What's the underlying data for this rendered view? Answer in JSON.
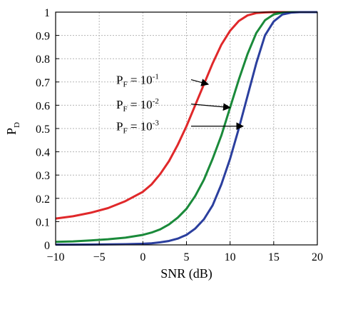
{
  "chart_data": {
    "type": "line",
    "xlabel": "SNR (dB)",
    "ylabel": "P",
    "ylabel_sub": "D",
    "xlim": [
      -10,
      20
    ],
    "ylim": [
      0,
      1
    ],
    "xticks": [
      -10,
      -5,
      0,
      5,
      10,
      15,
      20
    ],
    "xtick_labels": [
      "−10",
      "−5",
      "0",
      "5",
      "10",
      "15",
      "20"
    ],
    "yticks": [
      0,
      0.1,
      0.2,
      0.3,
      0.4,
      0.5,
      0.6,
      0.7,
      0.8,
      0.9,
      1
    ],
    "ytick_labels": [
      "0",
      "0.1",
      "0.2",
      "0.3",
      "0.4",
      "0.5",
      "0.6",
      "0.7",
      "0.8",
      "0.9",
      "1"
    ],
    "grid": true,
    "series": [
      {
        "color": "#e0282a",
        "x": [
          -10,
          -8,
          -6,
          -4,
          -2,
          0,
          1,
          2,
          3,
          4,
          5,
          6,
          7,
          8,
          9,
          10,
          11,
          12,
          13,
          14,
          15,
          16,
          17,
          18,
          20
        ],
        "y": [
          0.113,
          0.123,
          0.138,
          0.158,
          0.188,
          0.228,
          0.26,
          0.305,
          0.36,
          0.43,
          0.51,
          0.6,
          0.69,
          0.78,
          0.86,
          0.92,
          0.962,
          0.986,
          0.996,
          0.999,
          1.0,
          1.0,
          1.0,
          1.0,
          1.0
        ]
      },
      {
        "color": "#1a8a3a",
        "x": [
          -10,
          -8,
          -6,
          -4,
          -2,
          0,
          1,
          2,
          3,
          4,
          5,
          6,
          7,
          8,
          9,
          10,
          11,
          12,
          13,
          14,
          15,
          16,
          17,
          18,
          20
        ],
        "y": [
          0.013,
          0.015,
          0.019,
          0.024,
          0.031,
          0.043,
          0.053,
          0.067,
          0.088,
          0.117,
          0.155,
          0.21,
          0.28,
          0.37,
          0.47,
          0.59,
          0.71,
          0.82,
          0.91,
          0.965,
          0.99,
          0.998,
          1.0,
          1.0,
          1.0
        ]
      },
      {
        "color": "#2b3f9e",
        "x": [
          -10,
          -8,
          -6,
          -4,
          -2,
          0,
          1,
          2,
          3,
          4,
          5,
          6,
          7,
          8,
          9,
          10,
          11,
          12,
          13,
          14,
          15,
          16,
          17,
          18,
          20
        ],
        "y": [
          0.001,
          0.0012,
          0.0016,
          0.0022,
          0.003,
          0.005,
          0.007,
          0.011,
          0.017,
          0.027,
          0.043,
          0.07,
          0.11,
          0.17,
          0.26,
          0.37,
          0.5,
          0.64,
          0.78,
          0.9,
          0.96,
          0.99,
          0.998,
          1.0,
          1.0
        ]
      }
    ],
    "annotations": [
      {
        "base": "P",
        "sub": "F",
        "text": " = 10",
        "sup": "-1",
        "text_y": 0.71,
        "arrow_to": [
          7.5,
          0.69
        ]
      },
      {
        "base": "P",
        "sub": "F",
        "text": " = 10",
        "sup": "-2",
        "text_y": 0.605,
        "arrow_to": [
          10.0,
          0.59
        ]
      },
      {
        "base": "P",
        "sub": "F",
        "text": " = 10",
        "sup": "-3",
        "text_y": 0.51,
        "arrow_to": [
          11.5,
          0.51
        ]
      }
    ]
  }
}
